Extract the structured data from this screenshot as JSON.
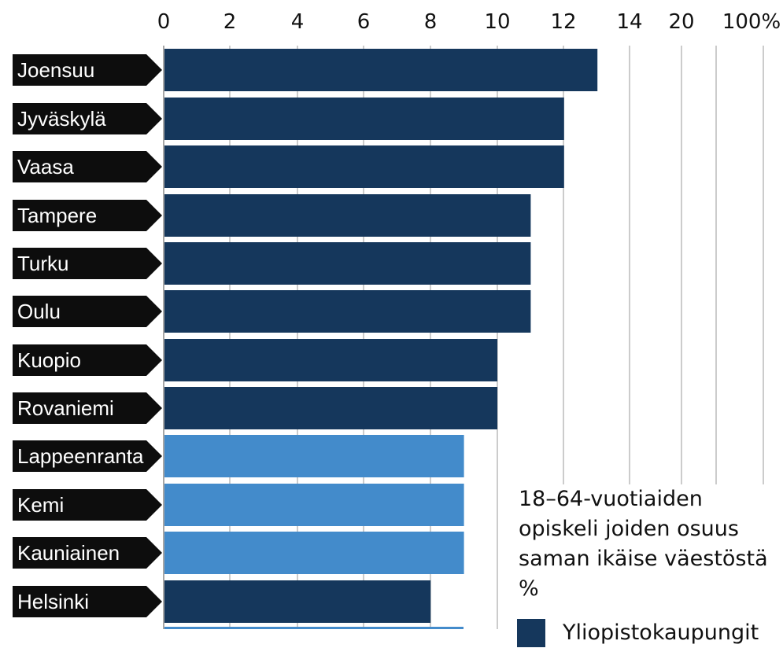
{
  "chart_data": {
    "type": "bar",
    "orientation": "horizontal",
    "x_tick_labels": [
      "0",
      "2",
      "4",
      "6",
      "8",
      "10",
      "12",
      "14",
      "20",
      "100%"
    ],
    "categories": [
      "Joensuu",
      "Jyväskylä",
      "Vaasa",
      "Tampere",
      "Turku",
      "Oulu",
      "Kuopio",
      "Rovaniemi",
      "Lappeenranta",
      "Kemi",
      "Kauniainen",
      "Helsinki"
    ],
    "values": [
      13,
      12,
      12,
      11,
      11,
      11,
      10,
      10,
      9,
      9,
      9,
      8
    ],
    "university_city": [
      true,
      true,
      true,
      true,
      true,
      true,
      true,
      true,
      false,
      false,
      false,
      true
    ],
    "colors": {
      "university": "#15375c",
      "other": "#438bcb",
      "label_bg": "#0d0d0d",
      "grid": "#bbbbbb"
    },
    "legend": {
      "title": "18–64-vuotiaiden opiskeli joiden osuus saman ikäise väestöstä %",
      "items": [
        {
          "label": "Yliopistokaupungit",
          "color": "#15375c"
        }
      ]
    },
    "grid": true
  }
}
